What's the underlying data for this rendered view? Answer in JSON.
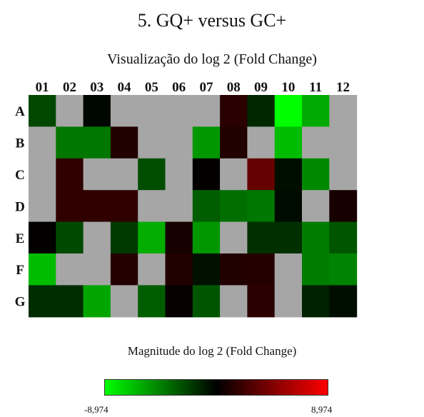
{
  "chart_data": {
    "type": "heatmap",
    "title": "5. GQ+ versus GC+",
    "subtitle": "Visualização do log 2 (Fold Change)",
    "columns": [
      "01",
      "02",
      "03",
      "04",
      "05",
      "06",
      "07",
      "08",
      "09",
      "10",
      "11",
      "12"
    ],
    "rows": [
      "A",
      "B",
      "C",
      "D",
      "E",
      "F",
      "G"
    ],
    "missing_color": "#a6a6a6",
    "color_scale": {
      "label": "Magnitude do log 2 (Fold Change)",
      "min": -8.974,
      "max": 8.974,
      "min_label": "-8,974",
      "max_label": "8,974",
      "low_color": "#00ff00",
      "mid_color": "#000000",
      "high_color": "#ff0000"
    },
    "values": [
      [
        -2.5,
        null,
        -0.2,
        null,
        null,
        null,
        null,
        1.5,
        -1.4,
        -8.9,
        -6.0,
        null
      ],
      [
        null,
        -4.2,
        -4.2,
        1.2,
        null,
        null,
        -5.3,
        1.2,
        null,
        -6.6,
        null,
        null
      ],
      [
        null,
        1.7,
        null,
        null,
        -2.7,
        null,
        0.1,
        null,
        3.6,
        -0.5,
        -4.8,
        null
      ],
      [
        null,
        1.7,
        1.7,
        1.7,
        null,
        null,
        -3.3,
        -3.9,
        -4.2,
        -0.4,
        null,
        0.8
      ],
      [
        0.1,
        -2.6,
        null,
        -2.0,
        -6.1,
        0.8,
        -5.3,
        null,
        -1.7,
        -1.7,
        -4.4,
        -3.0
      ],
      [
        -6.6,
        null,
        null,
        1.3,
        null,
        1.2,
        -0.6,
        1.2,
        1.3,
        null,
        -4.4,
        -4.6
      ],
      [
        -1.6,
        -1.6,
        -5.8,
        null,
        -3.3,
        0.2,
        -3.0,
        null,
        1.5,
        null,
        -1.2,
        -0.5
      ]
    ]
  }
}
